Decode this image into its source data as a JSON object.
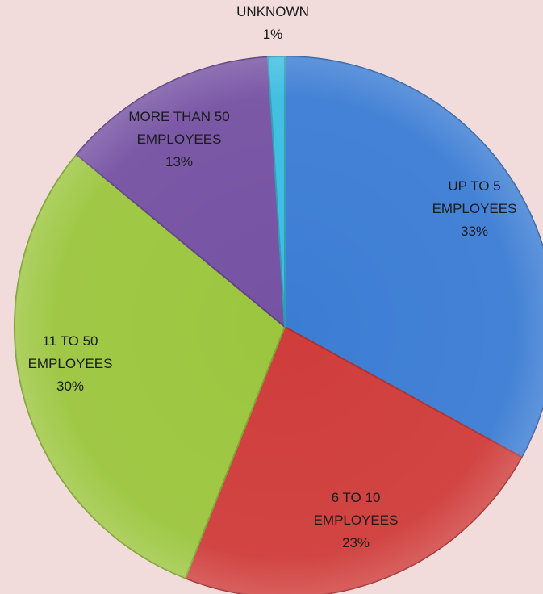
{
  "chart_data": {
    "type": "pie",
    "title": "",
    "slices": [
      {
        "label_lines": [
          "UP TO 5",
          "EMPLOYEES"
        ],
        "value": 33,
        "value_label": "33%",
        "color": "#3c7dd4"
      },
      {
        "label_lines": [
          "6 TO 10",
          "EMPLOYEES"
        ],
        "value": 23,
        "value_label": "23%",
        "color": "#cf3d3b"
      },
      {
        "label_lines": [
          "11 TO 50",
          "EMPLOYEES"
        ],
        "value": 30,
        "value_label": "30%",
        "color": "#9cc63f"
      },
      {
        "label_lines": [
          "MORE THAN 50",
          "EMPLOYEES"
        ],
        "value": 13,
        "value_label": "13%",
        "color": "#7652a3"
      },
      {
        "label_lines": [
          "UNKNOWN"
        ],
        "value": 1,
        "value_label": "1%",
        "color": "#3bbde0"
      }
    ],
    "legend": "none",
    "labels_position": "inside"
  }
}
